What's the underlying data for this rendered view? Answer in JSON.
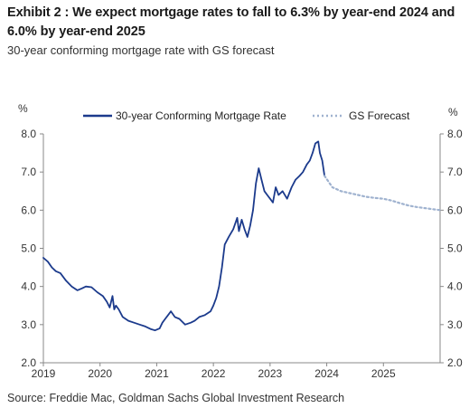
{
  "header": {
    "title": "Exhibit 2 : We expect mortgage rates to fall to 6.3% by year-end 2024 and 6.0% by year-end 2025",
    "subtitle": "30-year conforming mortgage rate with GS forecast"
  },
  "footer": {
    "source": "Source: Freddie Mac, Goldman Sachs Global Investment Research"
  },
  "colors": {
    "actual": "#1b3a8c",
    "forecast": "#9fb2cf",
    "axis": "#888888"
  },
  "chart_data": {
    "type": "line",
    "title": "",
    "left_unit": "%",
    "right_unit": "%",
    "ylim": [
      2.0,
      8.0
    ],
    "xlim": [
      2019.0,
      2026.0
    ],
    "yticks": [
      "2.0",
      "3.0",
      "4.0",
      "5.0",
      "6.0",
      "7.0",
      "8.0"
    ],
    "xticks": [
      "2019",
      "2020",
      "2021",
      "2022",
      "2023",
      "2024",
      "2025"
    ],
    "legend": {
      "placement": "top"
    },
    "series": [
      {
        "name": "30-year Conforming Mortgage Rate",
        "style": "solid",
        "x": [
          2019.0,
          2019.08,
          2019.15,
          2019.22,
          2019.3,
          2019.4,
          2019.5,
          2019.6,
          2019.68,
          2019.75,
          2019.85,
          2019.95,
          2020.05,
          2020.12,
          2020.17,
          2020.22,
          2020.25,
          2020.28,
          2020.33,
          2020.4,
          2020.5,
          2020.6,
          2020.7,
          2020.8,
          2020.9,
          2020.97,
          2021.05,
          2021.1,
          2021.15,
          2021.2,
          2021.25,
          2021.32,
          2021.4,
          2021.5,
          2021.6,
          2021.67,
          2021.75,
          2021.85,
          2021.95,
          2022.0,
          2022.05,
          2022.1,
          2022.15,
          2022.2,
          2022.27,
          2022.35,
          2022.42,
          2022.45,
          2022.5,
          2022.55,
          2022.6,
          2022.65,
          2022.7,
          2022.75,
          2022.8,
          2022.85,
          2022.9,
          2022.95,
          2023.0,
          2023.05,
          2023.1,
          2023.15,
          2023.22,
          2023.3,
          2023.38,
          2023.45,
          2023.52,
          2023.58,
          2023.65,
          2023.7,
          2023.75,
          2023.8,
          2023.85,
          2023.88,
          2023.92,
          2023.96
        ],
        "values": [
          4.75,
          4.65,
          4.5,
          4.4,
          4.35,
          4.15,
          4.0,
          3.9,
          3.95,
          4.0,
          3.98,
          3.85,
          3.75,
          3.6,
          3.45,
          3.75,
          3.4,
          3.5,
          3.4,
          3.2,
          3.1,
          3.05,
          3.0,
          2.95,
          2.88,
          2.85,
          2.9,
          3.05,
          3.15,
          3.25,
          3.35,
          3.2,
          3.15,
          3.0,
          3.05,
          3.1,
          3.2,
          3.25,
          3.35,
          3.5,
          3.7,
          4.0,
          4.5,
          5.1,
          5.3,
          5.5,
          5.8,
          5.45,
          5.75,
          5.5,
          5.3,
          5.6,
          6.0,
          6.7,
          7.1,
          6.8,
          6.5,
          6.4,
          6.3,
          6.2,
          6.6,
          6.4,
          6.5,
          6.3,
          6.6,
          6.8,
          6.9,
          7.0,
          7.2,
          7.3,
          7.5,
          7.75,
          7.8,
          7.5,
          7.3,
          6.9
        ]
      },
      {
        "name": "GS Forecast",
        "style": "dotted",
        "x": [
          2023.96,
          2024.1,
          2024.25,
          2024.4,
          2024.55,
          2024.7,
          2024.85,
          2025.0,
          2025.15,
          2025.3,
          2025.45,
          2025.6,
          2025.75,
          2025.9,
          2026.0
        ],
        "values": [
          6.9,
          6.6,
          6.5,
          6.45,
          6.4,
          6.35,
          6.32,
          6.3,
          6.25,
          6.18,
          6.12,
          6.08,
          6.05,
          6.02,
          6.0
        ]
      }
    ]
  }
}
